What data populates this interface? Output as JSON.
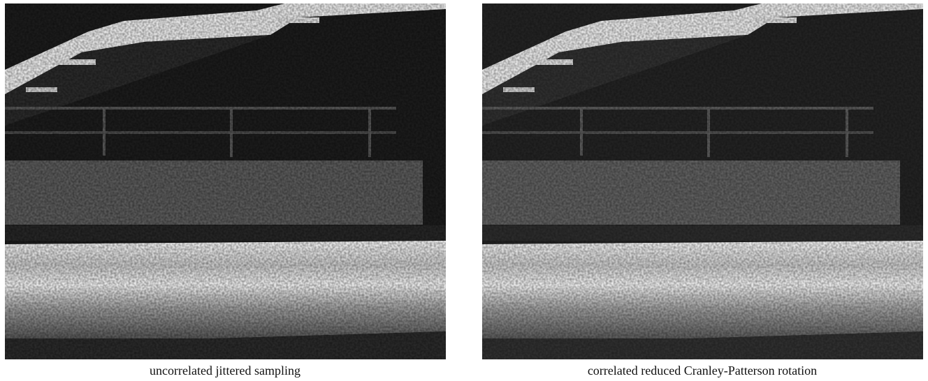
{
  "figure": {
    "panels": [
      {
        "caption": "uncorrelated jittered sampling"
      },
      {
        "caption": "correlated reduced Cranley-Patterson rotation"
      }
    ]
  }
}
